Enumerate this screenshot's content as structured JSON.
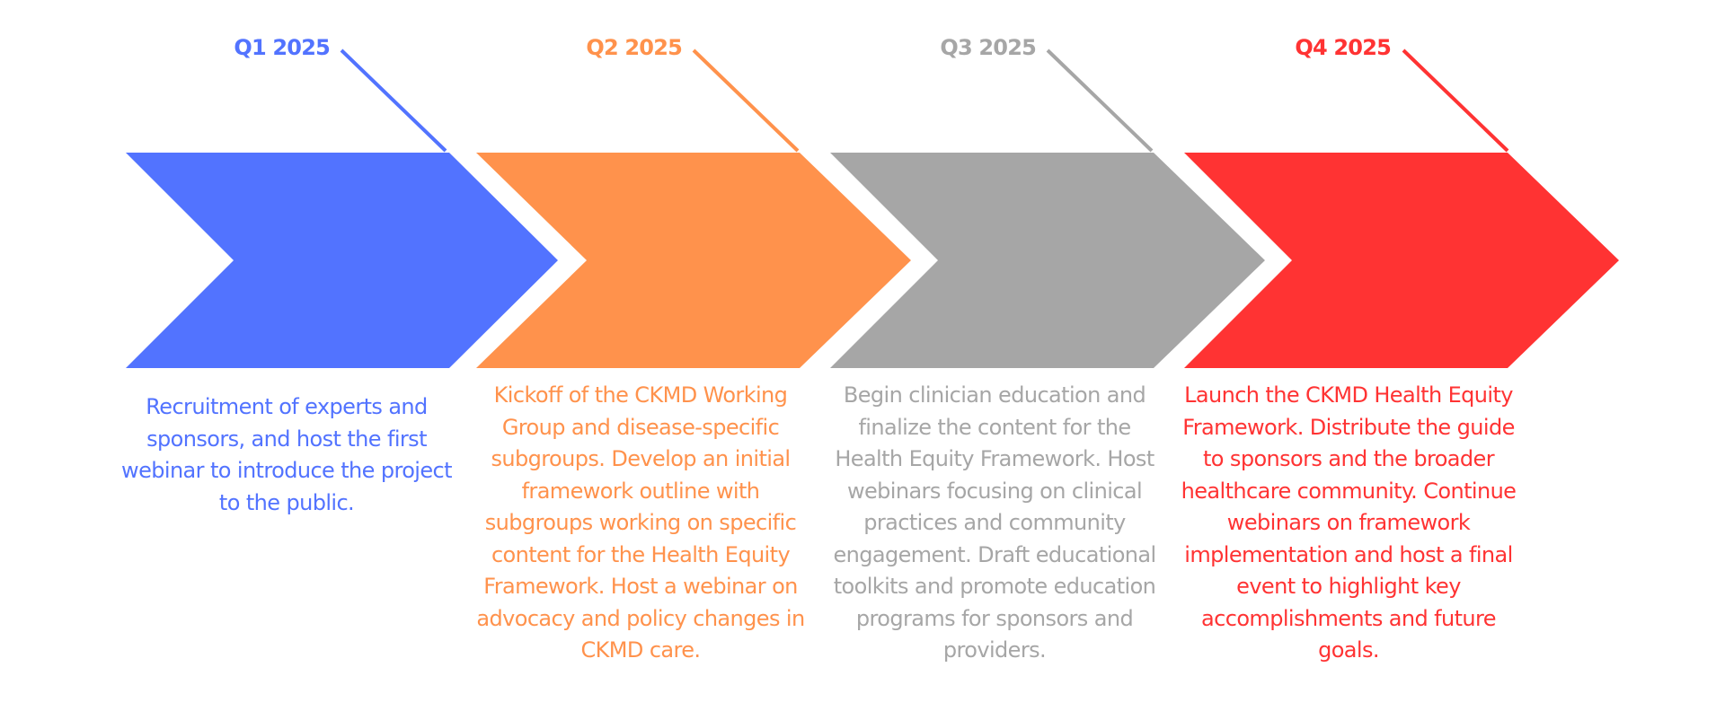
{
  "phases": [
    {
      "label": "Q1 2025",
      "color": "#5273FF",
      "description": "Recruitment of experts and sponsors, and host the first webinar to introduce the project to the public."
    },
    {
      "label": "Q2 2025",
      "color": "#FF924C",
      "description": "Kickoff of the CKMD Working Group and disease-specific subgroups. Develop an initial framework outline with subgroups working on specific content for the Health Equity Framework. Host a webinar on advocacy and policy changes in CKMD care."
    },
    {
      "label": "Q3 2025",
      "color": "#A6A6A6",
      "description": "Begin clinician education and finalize the content for the Health Equity Framework. Host webinars focusing on clinical practices and community engagement. Draft educational toolkits and promote education programs for sponsors and providers."
    },
    {
      "label": "Q4 2025",
      "color": "#FF3333",
      "description": "Launch the CKMD Health Equity Framework. Distribute the guide to sponsors and the broader healthcare community. Continue webinars on framework implementation and host a final event to highlight key accomplishments and future goals."
    }
  ]
}
